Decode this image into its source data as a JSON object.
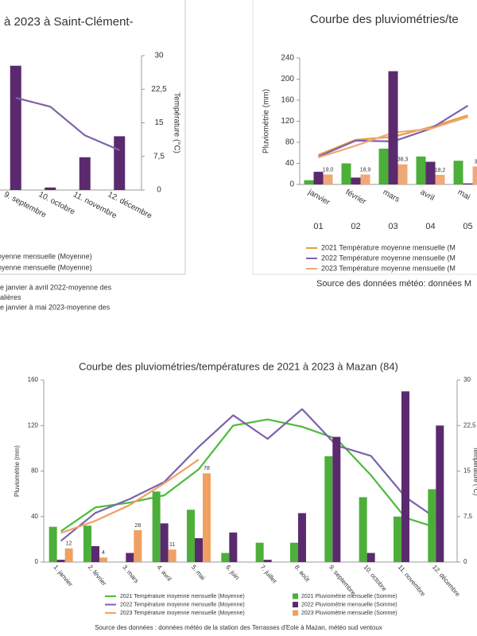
{
  "chart_data": [
    {
      "type": "bar",
      "title": "à 2023 à Saint-Clément-",
      "categories": [
        "9. septembre",
        "10. octobre",
        "11. novembre",
        "12. décembre"
      ],
      "ylim": [
        0,
        160
      ],
      "y2lim": [
        0,
        30
      ],
      "y2ticks": [
        0,
        {
          "value": 7.5,
          "label": "7,5"
        },
        15,
        {
          "value": 22.5,
          "label": "22,5"
        },
        30
      ],
      "y2label": "Température (°C)",
      "series": [
        {
          "name": "oyenne mensuelle (Moyenne)",
          "type": "bar",
          "color": "#5b2a6e",
          "values": [
            148,
            3,
            39,
            64
          ]
        },
        {
          "name": "oyenne mensuelle (Moyenne)",
          "type": "line",
          "axis": "y2",
          "color": "#7d62aa",
          "values": [
            20.6,
            18.6,
            12.2,
            8.9
          ]
        }
      ],
      "notes": [
        "e janvier à avril 2022-moyenne des",
        "alières",
        "e janvier à mai 2023-moyenne des"
      ]
    },
    {
      "type": "bar",
      "title": "Courbe des pluviométries/te",
      "categories": [
        "janvier",
        "février",
        "mars",
        "avril",
        "mai"
      ],
      "subcategories": [
        "01",
        "02",
        "03",
        "04",
        "05"
      ],
      "ylim": [
        0,
        240
      ],
      "yticks": [
        0,
        40,
        80,
        120,
        160,
        200,
        240
      ],
      "y2lim": [
        0,
        30
      ],
      "ylabel": "Pluviométrie (mm)",
      "series": [
        {
          "name": "2021 Température moyenne mensuelle (M",
          "type": "line",
          "axis": "y2",
          "color": "#e0a040",
          "values": [
            7.0,
            10.6,
            11.3,
            13.6,
            16.4
          ]
        },
        {
          "name": "2022 Température moyenne mensuelle (M",
          "type": "line",
          "axis": "y2",
          "color": "#7d62aa",
          "values": [
            6.6,
            10.4,
            10.2,
            13.2,
            18.7
          ]
        },
        {
          "name": "2023 Température moyenne mensuelle (M",
          "type": "line",
          "axis": "y2",
          "color": "#f0a878",
          "values": [
            6.4,
            9.2,
            12.3,
            13.2,
            16.0
          ]
        },
        {
          "type": "bar",
          "color": "#4caf3a",
          "values": [
            8,
            40,
            68,
            53,
            45
          ]
        },
        {
          "type": "bar",
          "color": "#5b2a6e",
          "values": [
            24,
            13,
            215,
            43,
            2
          ]
        },
        {
          "type": "bar",
          "color": "#f0a878",
          "values": [
            19.0,
            18.9,
            38.3,
            18.2,
            34
          ],
          "value_labels": [
            "19,0",
            "18,9",
            "38,3",
            "18,2",
            "34"
          ]
        }
      ],
      "source": "Source des données météo: données M"
    },
    {
      "type": "bar",
      "title": "Courbe des pluviométries/températures de 2021 à 2023 à Mazan (84)",
      "categories": [
        "1. janvier",
        "2. février",
        "3. mars",
        "4. avril",
        "5. mai",
        "6. juin",
        "7. juillet",
        "8. août",
        "9. septembre",
        "10. octobre",
        "11. novembre",
        "12. décembre"
      ],
      "ylim": [
        0,
        160
      ],
      "yticks": [
        0,
        40,
        80,
        120,
        160
      ],
      "y2lim": [
        0,
        30
      ],
      "y2ticks": [
        0,
        {
          "value": 7.5,
          "label": "7,5"
        },
        15,
        {
          "value": 22.5,
          "label": "22,5"
        },
        30
      ],
      "ylabel": "Pluviométrie (mm)",
      "y2label": "Température (°C)",
      "series": [
        {
          "name": "2021 Température moyenne mensuelle (Moyenne)",
          "type": "line",
          "axis": "y2",
          "color": "#4cbb3a",
          "values": [
            5.1,
            9.0,
            9.8,
            11.0,
            15.3,
            22.5,
            23.5,
            22.3,
            20.3,
            14.3,
            7.3,
            5.5
          ]
        },
        {
          "name": "2022 Température moyenne mensuelle (Moyenne)",
          "type": "line",
          "axis": "y2",
          "color": "#7d62aa",
          "values": [
            3.5,
            8.1,
            10.4,
            13.2,
            19.0,
            24.2,
            20.3,
            25.2,
            19.2,
            17.5,
            10.7,
            6.8
          ]
        },
        {
          "name": "2023 Température moyenne mensuelle (Moyenne)",
          "type": "line",
          "axis": "y2",
          "color": "#f0a060",
          "values": [
            4.8,
            6.8,
            9.4,
            13.0,
            16.9,
            null,
            null,
            null,
            null,
            null,
            null,
            null
          ]
        },
        {
          "name": "2021 Pluviométrie mensuelle (Somme)",
          "type": "bar",
          "color": "#4caf3a",
          "values": [
            31,
            32,
            0,
            62,
            46,
            8,
            17,
            17,
            93,
            57,
            40,
            64
          ]
        },
        {
          "name": "2022 Pluviométrie mensuelle (Somme)",
          "type": "bar",
          "color": "#5b2a6e",
          "values": [
            2,
            14,
            8,
            34,
            21,
            26,
            2,
            43,
            110,
            8,
            150,
            120
          ]
        },
        {
          "name": "2023 Pluviométrie mensuelle (Somme)",
          "type": "bar",
          "color": "#f0a060",
          "labels": true,
          "values": [
            12,
            4,
            28,
            11,
            78,
            null,
            null,
            null,
            null,
            null,
            null,
            null
          ]
        }
      ],
      "source": "Source des données : données météo de la station des Terrasses d'Eole à Mazan, météo sud ventoux"
    }
  ]
}
